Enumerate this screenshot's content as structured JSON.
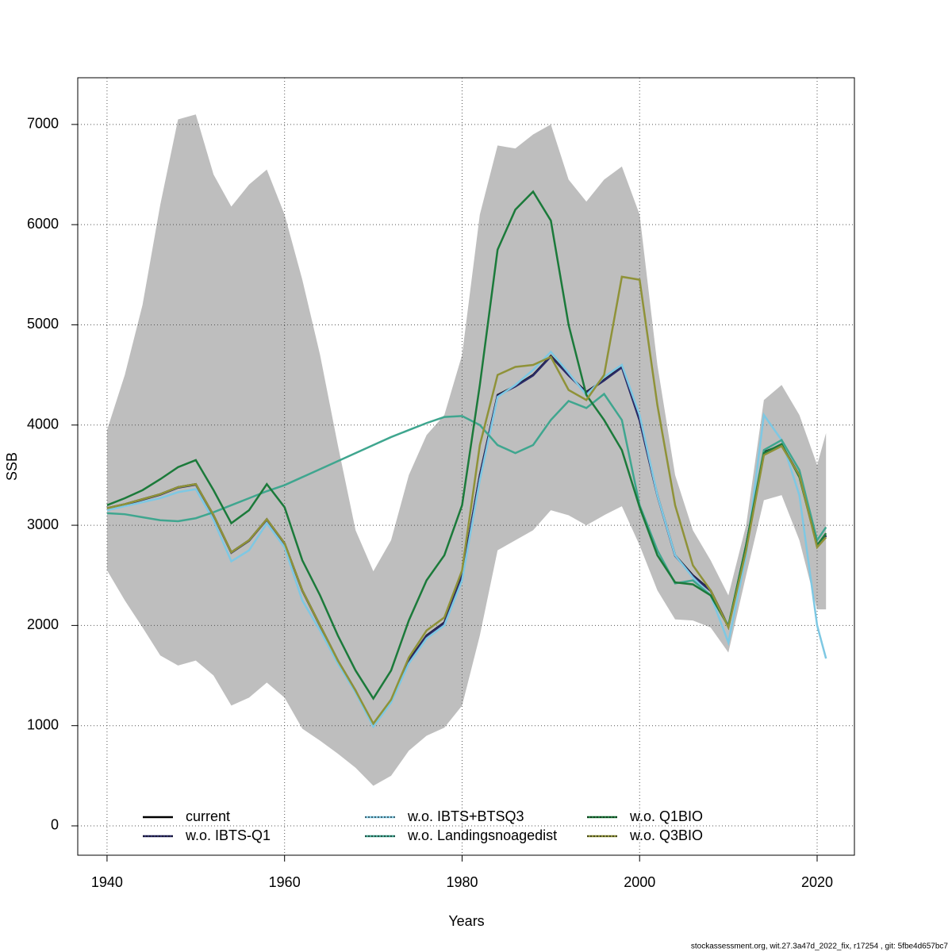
{
  "chart_data": {
    "type": "line",
    "xlabel": "Years",
    "ylabel": "SSB",
    "footer": "stockassessment.org, wit.27.3a47d_2022_fix, r17254 , git: 5fbe4d657bc7",
    "x": [
      1940,
      1942,
      1944,
      1946,
      1948,
      1950,
      1952,
      1954,
      1956,
      1958,
      1960,
      1962,
      1964,
      1966,
      1968,
      1970,
      1972,
      1974,
      1976,
      1978,
      1980,
      1982,
      1984,
      1986,
      1988,
      1990,
      1992,
      1994,
      1996,
      1998,
      2000,
      2002,
      2004,
      2006,
      2008,
      2010,
      2012,
      2014,
      2016,
      2018,
      2020,
      2021
    ],
    "xlim": [
      1936.7,
      2024.2
    ],
    "xticks": [
      1940,
      1960,
      1980,
      2000,
      2020
    ],
    "ylim": [
      -293,
      7466
    ],
    "yticks": [
      0,
      1000,
      2000,
      3000,
      4000,
      5000,
      6000,
      7000
    ],
    "grid": true,
    "legend": "bottom",
    "band": {
      "color": "#bebebe",
      "lower": [
        2550,
        2250,
        1980,
        1700,
        1600,
        1650,
        1500,
        1200,
        1280,
        1430,
        1280,
        970,
        850,
        720,
        580,
        400,
        500,
        750,
        900,
        980,
        1200,
        1900,
        2750,
        2850,
        2950,
        3150,
        3100,
        3000,
        3100,
        3190,
        2800,
        2350,
        2060,
        2050,
        1980,
        1730,
        2500,
        3250,
        3300,
        2850,
        2160,
        2160
      ],
      "upper": [
        3950,
        4500,
        5200,
        6200,
        7050,
        7100,
        6500,
        6180,
        6400,
        6550,
        6100,
        5450,
        4700,
        3800,
        2950,
        2540,
        2850,
        3500,
        3900,
        4100,
        4700,
        6100,
        6790,
        6760,
        6900,
        7000,
        6450,
        6230,
        6450,
        6580,
        6100,
        4600,
        3500,
        2950,
        2650,
        2300,
        3000,
        4250,
        4400,
        4100,
        3600,
        3920
      ]
    },
    "series": [
      {
        "name": "current",
        "color": "#000000",
        "values": [
          3170,
          3210,
          3260,
          3310,
          3380,
          3410,
          3100,
          2730,
          2850,
          3060,
          2820,
          2350,
          2000,
          1650,
          1350,
          1000,
          1250,
          1650,
          1900,
          2030,
          2500,
          3500,
          4300,
          4390,
          4500,
          4690,
          4500,
          4330,
          4450,
          4580,
          4050,
          3300,
          2700,
          2500,
          2350,
          1990,
          2800,
          3730,
          3800,
          3500,
          2800,
          2900
        ]
      },
      {
        "name": "w.o. IBTS-Q1",
        "color": "#2a2a66",
        "values": [
          3165,
          3205,
          3255,
          3305,
          3375,
          3405,
          3095,
          2725,
          2845,
          3055,
          2815,
          2345,
          1995,
          1645,
          1345,
          995,
          1245,
          1645,
          1895,
          2025,
          2495,
          3495,
          4295,
          4385,
          4495,
          4685,
          4495,
          4325,
          4445,
          4575,
          4045,
          3295,
          2695,
          2495,
          2345,
          1985,
          2795,
          3725,
          3795,
          3495,
          2795,
          2895
        ]
      },
      {
        "name": "w.o. IBTS+BTSQ3",
        "color": "#7ec8e3",
        "values": [
          3150,
          3190,
          3230,
          3270,
          3330,
          3360,
          3050,
          2640,
          2750,
          3020,
          2780,
          2250,
          1950,
          1620,
          1330,
          990,
          1230,
          1620,
          1870,
          2000,
          2450,
          3450,
          4280,
          4400,
          4550,
          4730,
          4520,
          4300,
          4480,
          4600,
          4100,
          3300,
          2700,
          2480,
          2300,
          1830,
          2700,
          4100,
          3850,
          3300,
          2000,
          1670
        ]
      },
      {
        "name": "w.o. Landingsnoagedist",
        "color": "#3fa68f",
        "values": [
          3120,
          3110,
          3080,
          3050,
          3040,
          3070,
          3130,
          3200,
          3270,
          3340,
          3400,
          3480,
          3560,
          3640,
          3720,
          3800,
          3880,
          3950,
          4020,
          4080,
          4090,
          4000,
          3800,
          3720,
          3800,
          4050,
          4240,
          4170,
          4310,
          4050,
          3200,
          2750,
          2420,
          2450,
          2300,
          2000,
          2800,
          3750,
          3850,
          3550,
          2850,
          2980
        ]
      },
      {
        "name": "w.o. Q1BIO",
        "color": "#1b7a3a",
        "values": [
          3200,
          3270,
          3350,
          3460,
          3580,
          3650,
          3350,
          3020,
          3150,
          3410,
          3180,
          2650,
          2300,
          1900,
          1550,
          1270,
          1550,
          2050,
          2450,
          2700,
          3200,
          4400,
          5750,
          6150,
          6330,
          6040,
          5000,
          4300,
          4050,
          3750,
          3180,
          2700,
          2430,
          2410,
          2300,
          1990,
          2800,
          3720,
          3810,
          3480,
          2800,
          2920
        ]
      },
      {
        "name": "w.o. Q3BIO",
        "color": "#8f9238",
        "values": [
          3170,
          3210,
          3260,
          3310,
          3380,
          3410,
          3100,
          2730,
          2850,
          3060,
          2820,
          2350,
          2000,
          1650,
          1350,
          1020,
          1260,
          1680,
          1950,
          2080,
          2550,
          3800,
          4500,
          4580,
          4600,
          4680,
          4350,
          4250,
          4500,
          5480,
          5450,
          4200,
          3200,
          2600,
          2350,
          1980,
          2750,
          3700,
          3790,
          3500,
          2780,
          2880
        ]
      }
    ]
  }
}
